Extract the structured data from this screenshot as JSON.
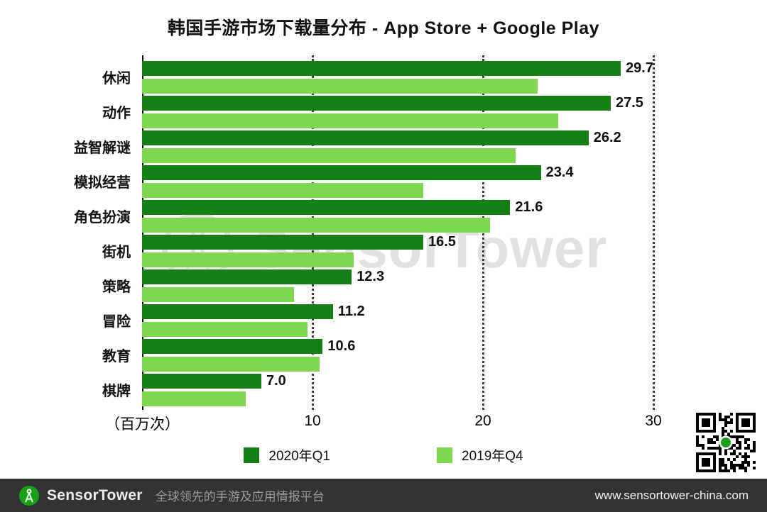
{
  "title": "韩国手游市场下载量分布 - App Store + Google Play",
  "chart_data": {
    "type": "bar",
    "orientation": "horizontal",
    "categories": [
      "休闲",
      "动作",
      "益智解谜",
      "模拟经营",
      "角色扮演",
      "街机",
      "策略",
      "冒险",
      "教育",
      "棋牌"
    ],
    "series": [
      {
        "name": "2020年Q1",
        "color": "#168016",
        "values": [
          29.7,
          27.5,
          26.2,
          23.4,
          21.6,
          16.5,
          12.3,
          11.2,
          10.6,
          7.0
        ],
        "value_labels_shown": true
      },
      {
        "name": "2019年Q4",
        "color": "#7ed74f",
        "values": [
          23.2,
          24.4,
          21.9,
          16.5,
          20.4,
          12.4,
          8.9,
          9.7,
          10.4,
          6.1
        ],
        "value_labels_shown": false,
        "values_estimated_from_pixels": true
      }
    ],
    "xlim": [
      0,
      30
    ],
    "xticks": [
      10,
      20,
      30
    ],
    "axis_unit_label": "（百万次）",
    "grid": "dotted-vertical",
    "legend_position": "bottom"
  },
  "watermark": {
    "text": "SensorTower"
  },
  "footer": {
    "brand": "SensorTower",
    "tagline": "全球领先的手游及应用情报平台",
    "url": "www.sensortower-china.com"
  },
  "colors": {
    "dark_green": "#168016",
    "light_green": "#7ed74f",
    "logo_green": "#18a018",
    "footer_bg": "#333333"
  }
}
